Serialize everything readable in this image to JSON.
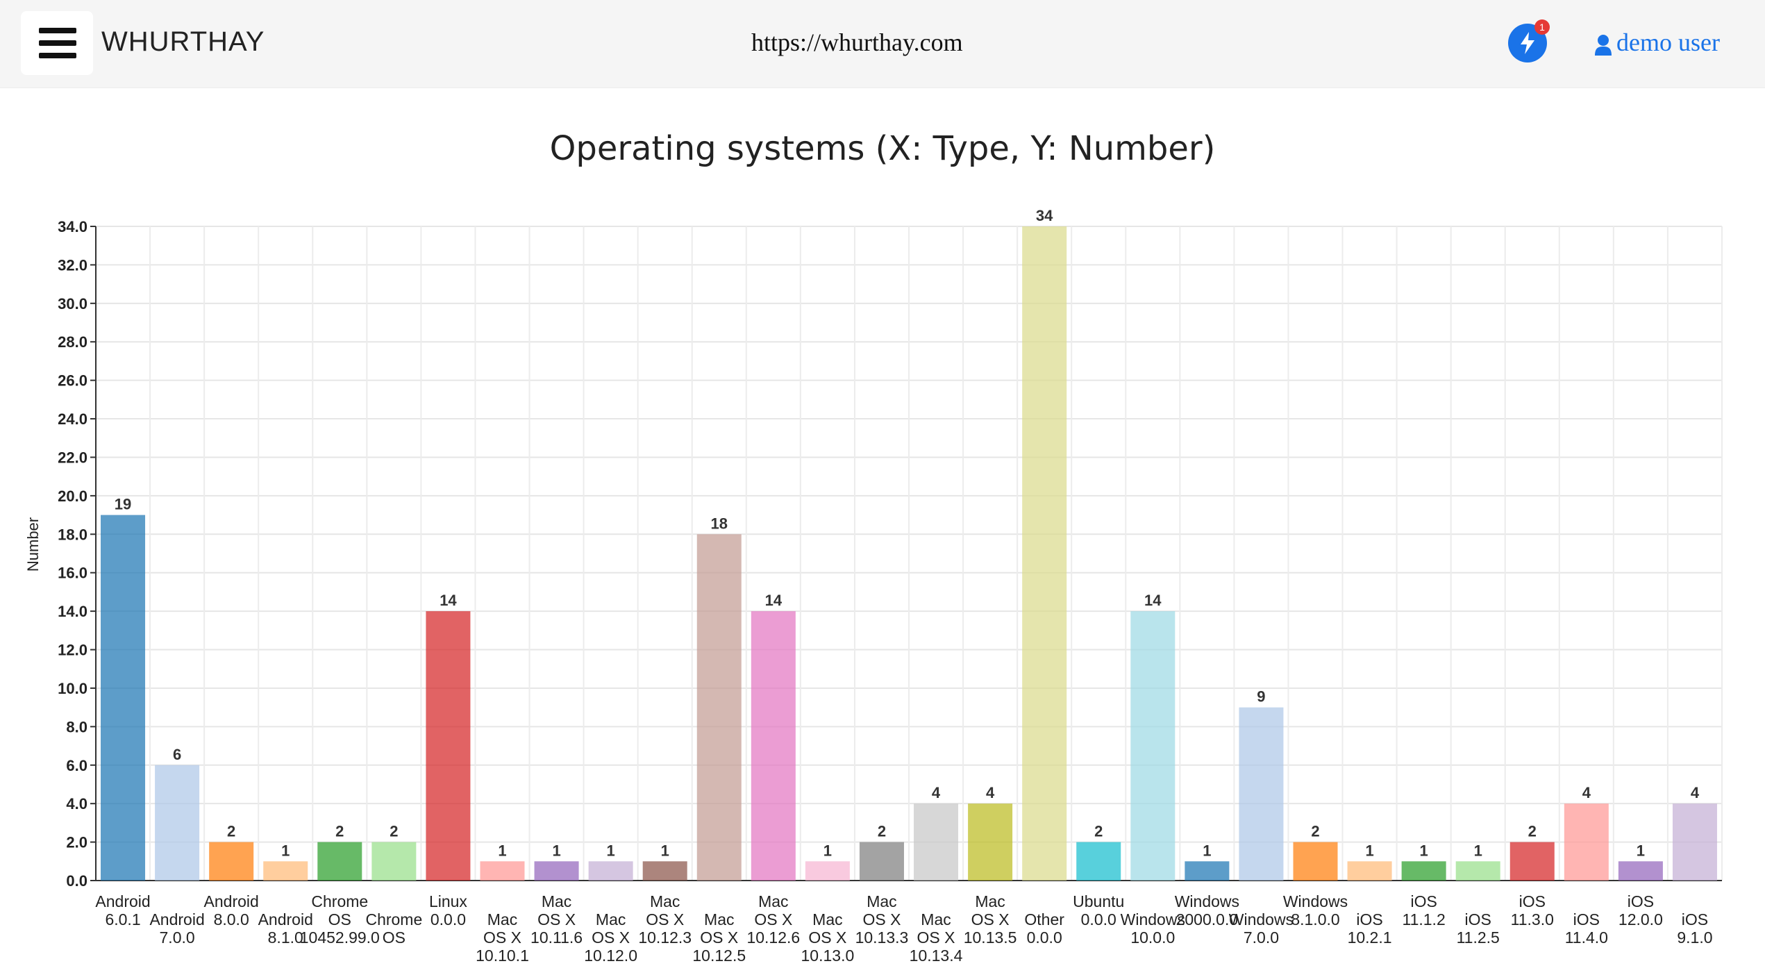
{
  "app": {
    "brand": "WHURTHAY",
    "url": "https://whurthay.com",
    "notification_count": "1",
    "user_label": "demo user",
    "icons": {
      "menu": "hamburger-menu-icon",
      "notifications": "lightning-bolt-icon",
      "user": "user-icon"
    },
    "colors": {
      "accent": "#1a73e8",
      "badge": "#e53935",
      "topbar_bg": "#f5f5f5"
    }
  },
  "chart_data": {
    "type": "bar",
    "title": "Operating systems (X: Type, Y: Number)",
    "xlabel": "",
    "ylabel": "Number",
    "ylim": [
      0,
      34
    ],
    "y_ticks": [
      "0.0",
      "2.0",
      "4.0",
      "6.0",
      "8.0",
      "10.0",
      "12.0",
      "14.0",
      "16.0",
      "18.0",
      "20.0",
      "22.0",
      "24.0",
      "26.0",
      "28.0",
      "30.0",
      "32.0",
      "34.0"
    ],
    "grid": true,
    "categories": [
      "Android 6.0.1",
      "Android 7.0.0",
      "Android 8.0.0",
      "Android 8.1.0",
      "Chrome OS 10452.99.0",
      "Chrome OS",
      "Linux 0.0.0",
      "Mac OS X 10.10.1",
      "Mac OS X 10.11.6",
      "Mac OS X 10.12.0",
      "Mac OS X 10.12.3",
      "Mac OS X 10.12.5",
      "Mac OS X 10.12.6",
      "Mac OS X 10.13.0",
      "Mac OS X 10.13.3",
      "Mac OS X 10.13.4",
      "Mac OS X 10.13.5",
      "Other 0.0.0",
      "Ubuntu 0.0.0",
      "Windows 10.0.0",
      "Windows 2000.0.0",
      "Windows 7.0.0",
      "Windows 8.1.0.0",
      "iOS 10.2.1",
      "iOS 11.1.2",
      "iOS 11.2.5",
      "iOS 11.3.0",
      "iOS 11.4.0",
      "iOS 12.0.0",
      "iOS 9.1.0"
    ],
    "values": [
      19,
      6,
      2,
      1,
      2,
      2,
      14,
      1,
      1,
      1,
      1,
      18,
      14,
      1,
      2,
      4,
      4,
      34,
      2,
      14,
      1,
      9,
      2,
      1,
      1,
      1,
      2,
      4,
      1,
      4
    ],
    "colors": [
      "#1f77b4",
      "#aec7e8",
      "#ff7f0e",
      "#ffbb78",
      "#2ca02c",
      "#98df8a",
      "#d62728",
      "#ff9896",
      "#9467bd",
      "#c5b0d5",
      "#8c564b",
      "#c49c94",
      "#e377c2",
      "#f7b6d2",
      "#7f7f7f",
      "#c7c7c7",
      "#bcbd22",
      "#dbdb8d",
      "#17becf",
      "#9edae5",
      "#1f77b4",
      "#aec7e8",
      "#ff7f0e",
      "#ffbb78",
      "#2ca02c",
      "#98df8a",
      "#d62728",
      "#ff9896",
      "#9467bd",
      "#c5b0d5"
    ],
    "x_tick_lines": [
      [
        "Android",
        "6.0.1"
      ],
      [
        "Android",
        "7.0.0"
      ],
      [
        "Android",
        "8.0.0"
      ],
      [
        "Android",
        "8.1.0"
      ],
      [
        "Chrome",
        "OS",
        "10452.99.0"
      ],
      [
        "Chrome",
        "OS"
      ],
      [
        "Linux",
        "0.0.0"
      ],
      [
        "Mac",
        "OS X",
        "10.10.1"
      ],
      [
        "Mac",
        "OS X",
        "10.11.6"
      ],
      [
        "Mac",
        "OS X",
        "10.12.0"
      ],
      [
        "Mac",
        "OS X",
        "10.12.3"
      ],
      [
        "Mac",
        "OS X",
        "10.12.5"
      ],
      [
        "Mac",
        "OS X",
        "10.12.6"
      ],
      [
        "Mac",
        "OS X",
        "10.13.0"
      ],
      [
        "Mac",
        "OS X",
        "10.13.3"
      ],
      [
        "Mac",
        "OS X",
        "10.13.4"
      ],
      [
        "Mac",
        "OS X",
        "10.13.5"
      ],
      [
        "Other",
        "0.0.0"
      ],
      [
        "Ubuntu",
        "0.0.0"
      ],
      [
        "Windows",
        "10.0.0"
      ],
      [
        "Windows",
        "2000.0.0"
      ],
      [
        "Windows",
        "7.0.0"
      ],
      [
        "Windows",
        "8.1.0.0"
      ],
      [
        "iOS",
        "10.2.1"
      ],
      [
        "iOS",
        "11.1.2"
      ],
      [
        "iOS",
        "11.2.5"
      ],
      [
        "iOS",
        "11.3.0"
      ],
      [
        "iOS",
        "11.4.0"
      ],
      [
        "iOS",
        "12.0.0"
      ],
      [
        "iOS",
        "9.1.0"
      ]
    ]
  }
}
